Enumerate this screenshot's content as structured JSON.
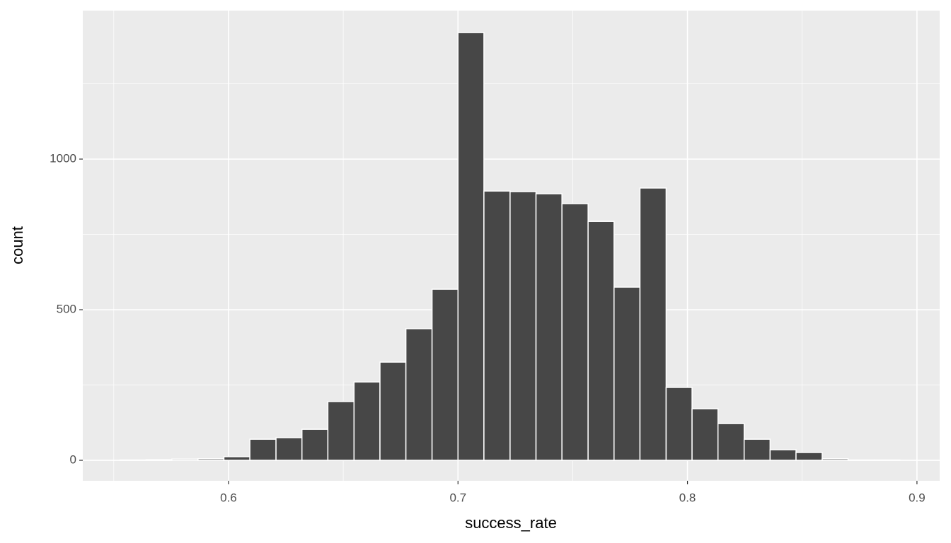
{
  "chart_data": {
    "type": "histogram",
    "x_label": "success_rate",
    "y_label": "count",
    "bins": [
      0.5527,
      0.564,
      0.5753,
      0.5867,
      0.598,
      0.6093,
      0.6207,
      0.632,
      0.6433,
      0.6547,
      0.666,
      0.6773,
      0.6887,
      0.7,
      0.7113,
      0.7227,
      0.734,
      0.7453,
      0.7567,
      0.768,
      0.7793,
      0.7907,
      0.802,
      0.8133,
      0.8247,
      0.836,
      0.8473,
      0.8587,
      0.87,
      0.8813,
      0.8926
    ],
    "counts": [
      1,
      2,
      4,
      5,
      12,
      70,
      75,
      103,
      195,
      260,
      326,
      437,
      568,
      1420,
      894,
      892,
      885,
      852,
      793,
      575,
      904,
      242,
      171,
      122,
      70,
      35,
      26,
      5,
      1,
      1
    ],
    "color": "#474747",
    "xlim": [
      0.5365,
      0.9099
    ],
    "xticks": [
      0.6,
      0.7,
      0.8,
      0.9
    ],
    "xminor": [
      0.55,
      0.65,
      0.75,
      0.85
    ],
    "ylim": [
      -68,
      1493
    ],
    "yticks": [
      0,
      500,
      1000
    ],
    "yminor": [
      250,
      750,
      1250
    ],
    "grid": true
  }
}
